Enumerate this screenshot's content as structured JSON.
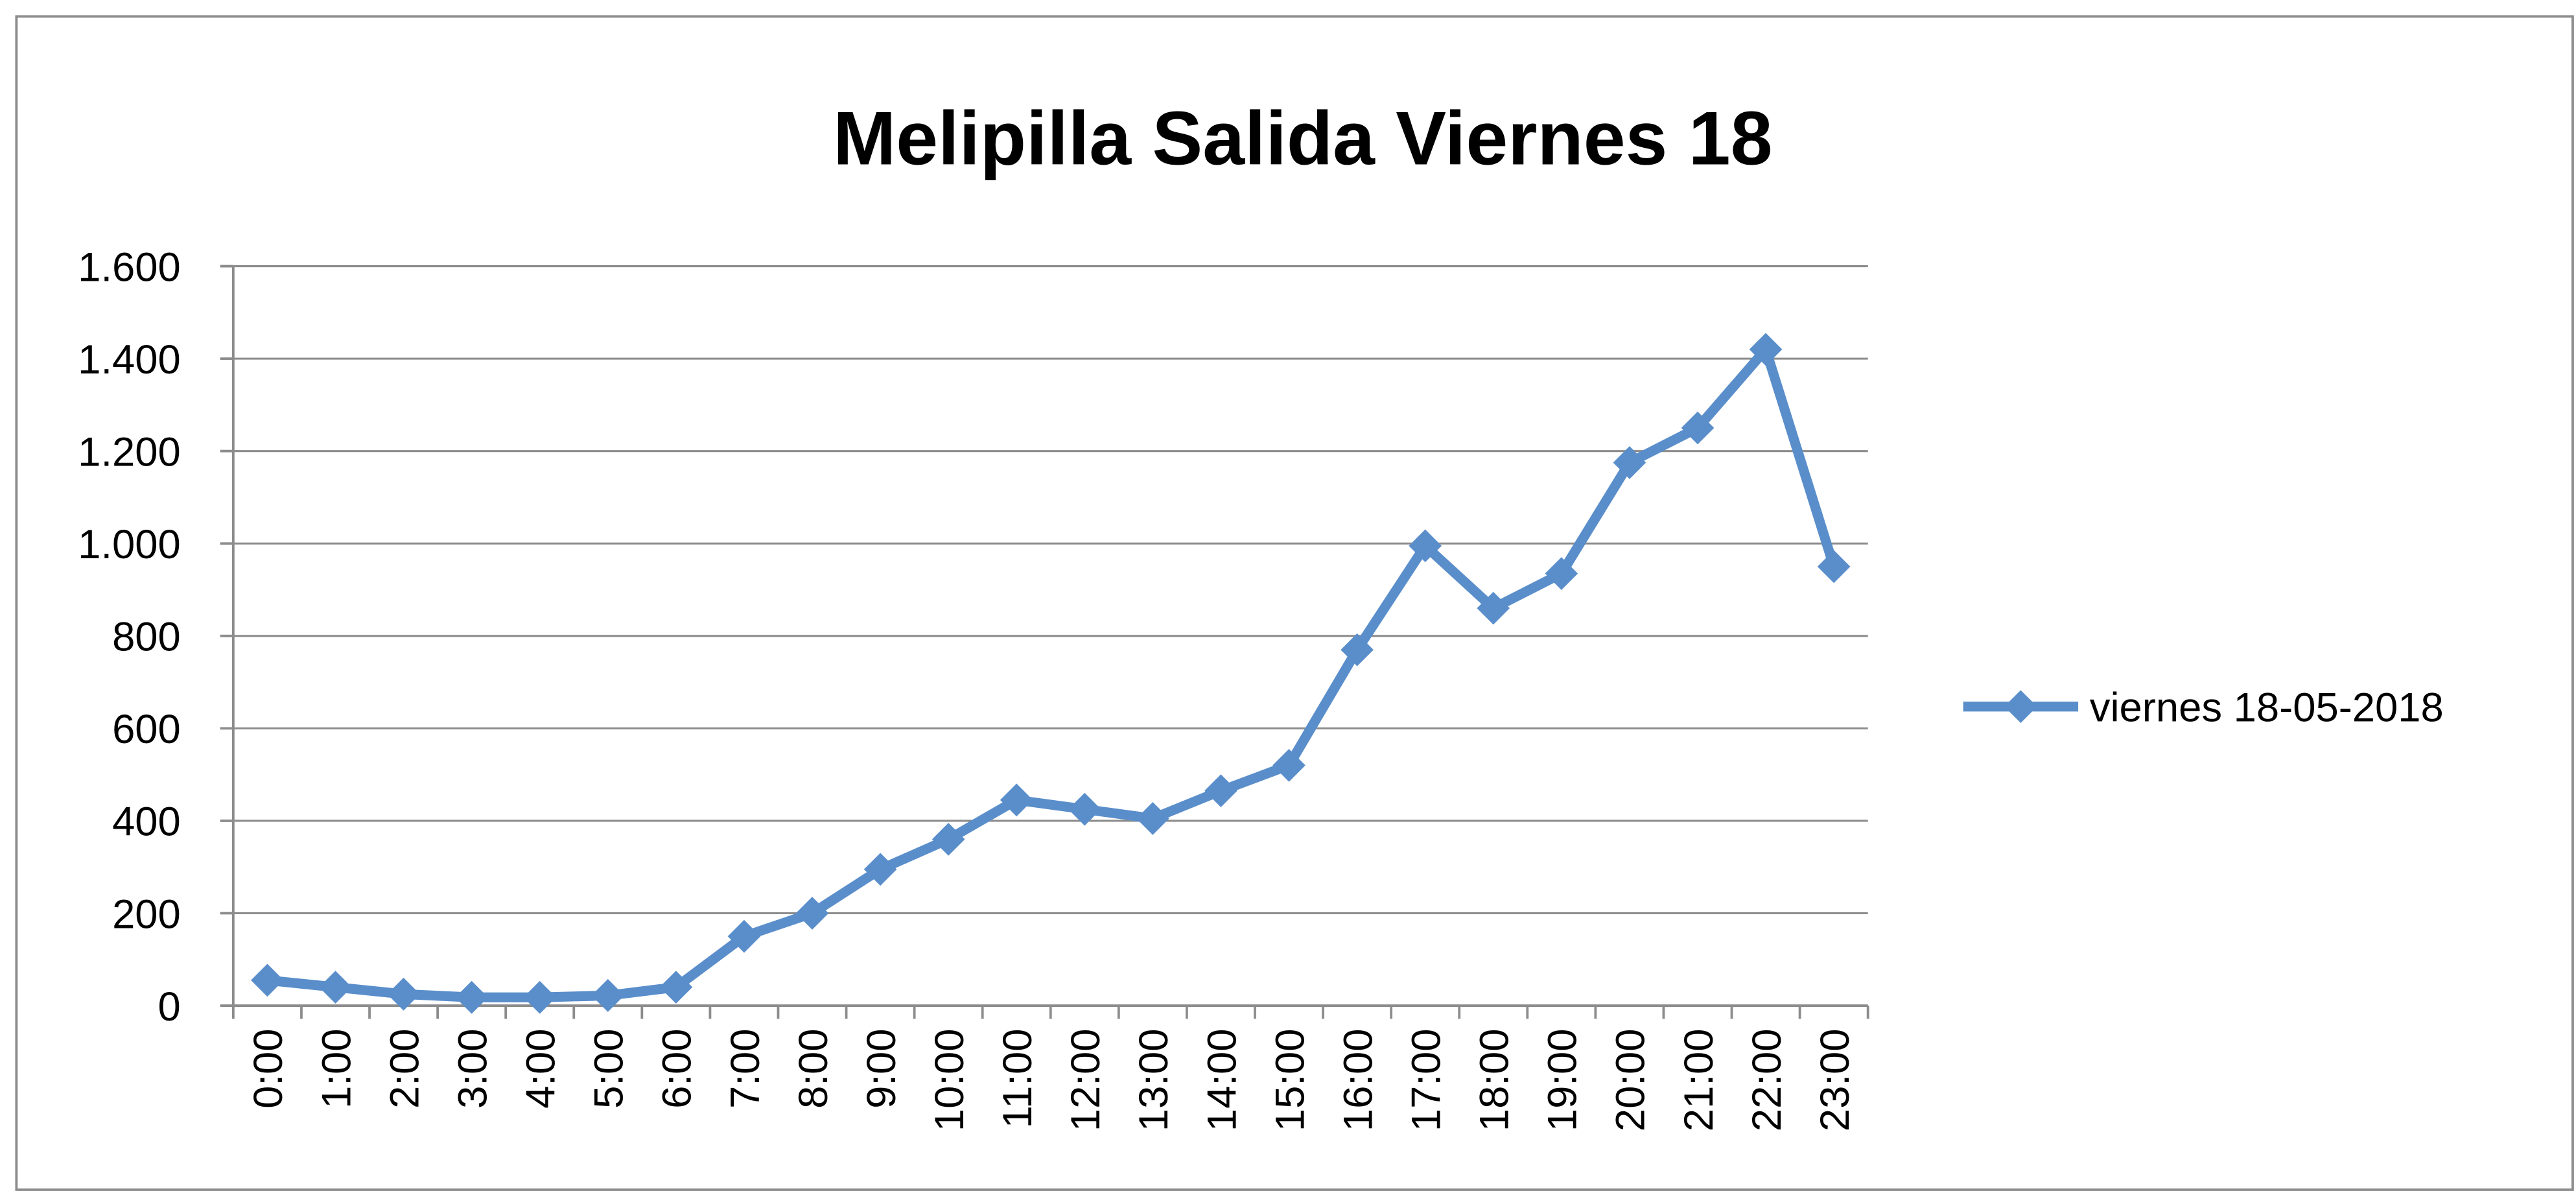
{
  "chart_data": {
    "type": "line",
    "title": "Melipilla Salida Viernes 18",
    "categories": [
      "0:00",
      "1:00",
      "2:00",
      "3:00",
      "4:00",
      "5:00",
      "6:00",
      "7:00",
      "8:00",
      "9:00",
      "10:00",
      "11:00",
      "12:00",
      "13:00",
      "14:00",
      "15:00",
      "16:00",
      "17:00",
      "18:00",
      "19:00",
      "20:00",
      "21:00",
      "22:00",
      "23:00"
    ],
    "series": [
      {
        "name": "viernes 18-05-2018",
        "color": "#5a8ecb",
        "values": [
          55,
          40,
          25,
          18,
          18,
          22,
          40,
          150,
          200,
          295,
          360,
          445,
          425,
          405,
          465,
          520,
          770,
          995,
          860,
          935,
          1175,
          1250,
          1420,
          950
        ]
      }
    ],
    "ylim": [
      0,
      1600
    ],
    "yticks": [
      0,
      200,
      400,
      600,
      800,
      {
        "value": 1000,
        "label": "1.000"
      },
      {
        "value": 1200,
        "label": "1.200"
      },
      {
        "value": 1400,
        "label": "1.400"
      },
      {
        "value": 1600,
        "label": "1.600"
      }
    ],
    "grid": true,
    "legend": "right"
  }
}
